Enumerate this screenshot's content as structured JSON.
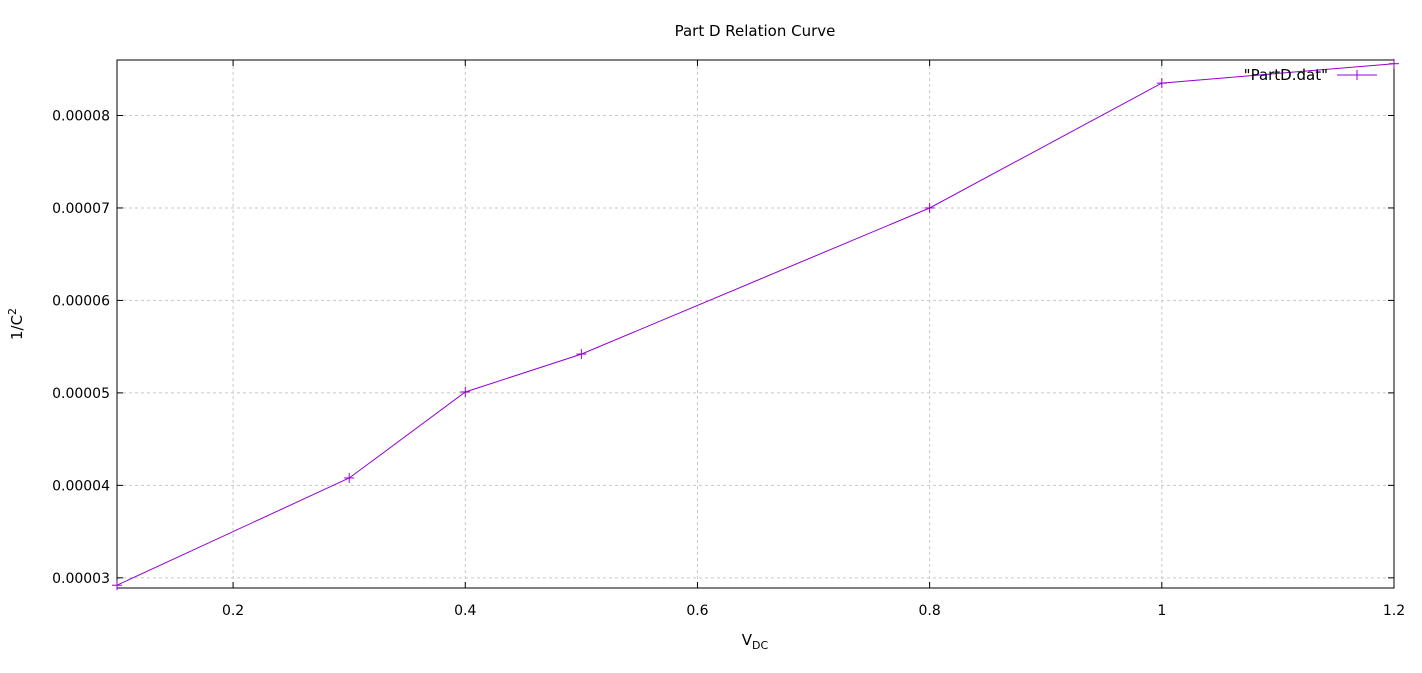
{
  "chart_data": {
    "type": "line",
    "title": "Part D Relation Curve",
    "xlabel": {
      "main": "V",
      "sub": "DC"
    },
    "ylabel": {
      "main": "1/C",
      "sup": "2"
    },
    "xlim": [
      0.1,
      1.2
    ],
    "ylim": [
      2.89e-05,
      8.6e-05
    ],
    "xticks": [
      {
        "value": 0.2,
        "label": "0.2"
      },
      {
        "value": 0.4,
        "label": "0.4"
      },
      {
        "value": 0.6,
        "label": "0.6"
      },
      {
        "value": 0.8,
        "label": "0.8"
      },
      {
        "value": 1.0,
        "label": "1"
      },
      {
        "value": 1.2,
        "label": "1.2"
      }
    ],
    "yticks": [
      {
        "value": 3e-05,
        "label": "0.00003"
      },
      {
        "value": 4e-05,
        "label": "0.00004"
      },
      {
        "value": 5e-05,
        "label": "0.00005"
      },
      {
        "value": 6e-05,
        "label": "0.00006"
      },
      {
        "value": 7e-05,
        "label": "0.00007"
      },
      {
        "value": 8e-05,
        "label": "0.00008"
      }
    ],
    "grid": true,
    "legend_position": "top-right",
    "series": [
      {
        "name": "\"PartD.dat\"",
        "color": "#9400d3",
        "marker": "plus",
        "x": [
          0.1,
          0.3,
          0.4,
          0.5,
          0.8,
          1.0,
          1.2
        ],
        "y": [
          2.92e-05,
          4.08e-05,
          5.01e-05,
          5.42e-05,
          7e-05,
          8.35e-05,
          8.56e-05
        ]
      }
    ]
  }
}
